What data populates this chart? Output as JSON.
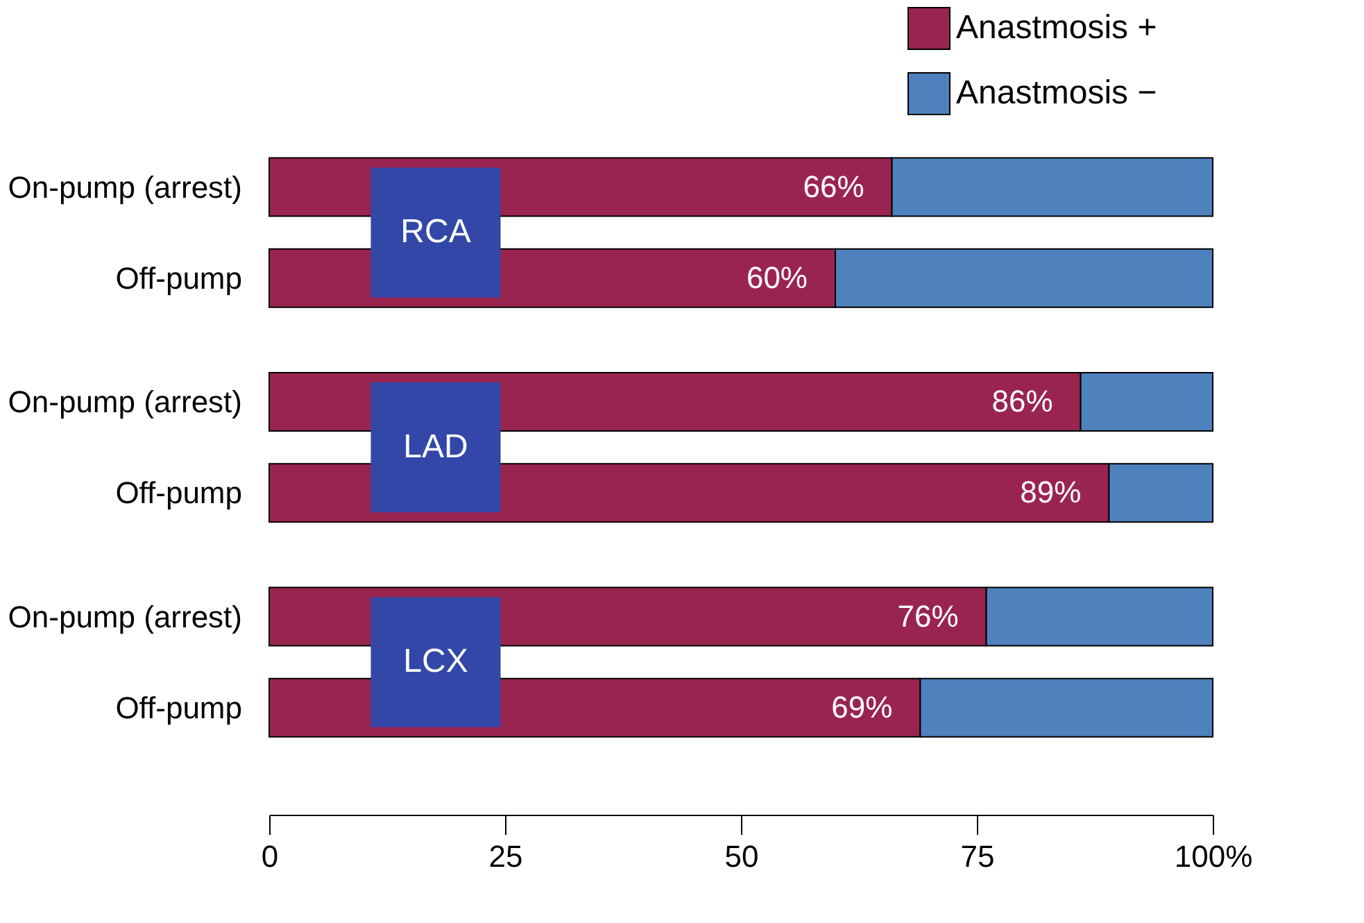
{
  "chart_data": {
    "type": "bar",
    "orientation": "horizontal",
    "stacked": true,
    "categories": [
      "On-pump (arrest)",
      "Off-pump",
      "On-pump (arrest)",
      "Off-pump",
      "On-pump (arrest)",
      "Off-pump"
    ],
    "series": [
      {
        "name": "Anastmosis +",
        "color": "#9a2450",
        "values": [
          66,
          60,
          86,
          89,
          76,
          69
        ],
        "value_labels": [
          "66%",
          "60%",
          "86%",
          "89%",
          "76%",
          "69%"
        ]
      },
      {
        "name": "Anastmosis −",
        "color": "#4f81bd",
        "values": [
          34,
          40,
          14,
          11,
          24,
          31
        ]
      }
    ],
    "annotations": [
      "RCA",
      "LAD",
      "LCX"
    ],
    "xlim": [
      0,
      100
    ],
    "xticks": [
      0,
      25,
      50,
      75,
      {
        "value": 100,
        "label": "100%"
      }
    ],
    "grid": false,
    "legend": "top right"
  }
}
